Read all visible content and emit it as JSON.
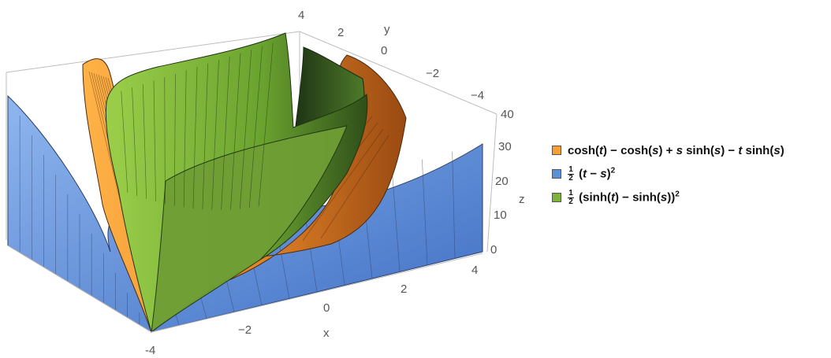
{
  "chart_data": {
    "type": "surface3d",
    "axes": {
      "x": {
        "label": "x",
        "range": [
          -4,
          4
        ],
        "ticks": [
          "-4",
          "−2",
          "0",
          "2",
          "4"
        ]
      },
      "y": {
        "label": "y",
        "range": [
          -4,
          4
        ],
        "ticks": [
          "2",
          "0",
          "−2",
          "−4"
        ]
      },
      "z": {
        "label": "z",
        "range": [
          0,
          40
        ],
        "ticks": [
          "0",
          "10",
          "20",
          "30",
          "40"
        ]
      },
      "top_corner_label": "4"
    },
    "series": [
      {
        "name": "cosh(t) − cosh(s) + s sinh(s) − t sinh(s)",
        "color": "#f5a030"
      },
      {
        "name": "1/2 (t − s)^2",
        "color": "#5b8fd8"
      },
      {
        "name": "1/2 (sinh(t) − sinh(s))^2",
        "color": "#7cb33a"
      }
    ]
  },
  "legend": {
    "item1": {
      "a": "cosh(",
      "b": "t",
      "c": ") − cosh(",
      "d": "s",
      "e": ") + ",
      "f": "s",
      "g": " sinh(",
      "h": "s",
      "i": ") − ",
      "j": "t",
      "k": " sinh(",
      "l": "s",
      "m": ")"
    },
    "item2": {
      "num": "1",
      "den": "2",
      "a": " (",
      "b": "t",
      "c": " − ",
      "d": "s",
      "e": ")",
      "sup": "2"
    },
    "item3": {
      "num": "1",
      "den": "2",
      "a": " (sinh(",
      "b": "t",
      "c": ") − sinh(",
      "d": "s",
      "e": "))",
      "sup": "2"
    }
  }
}
